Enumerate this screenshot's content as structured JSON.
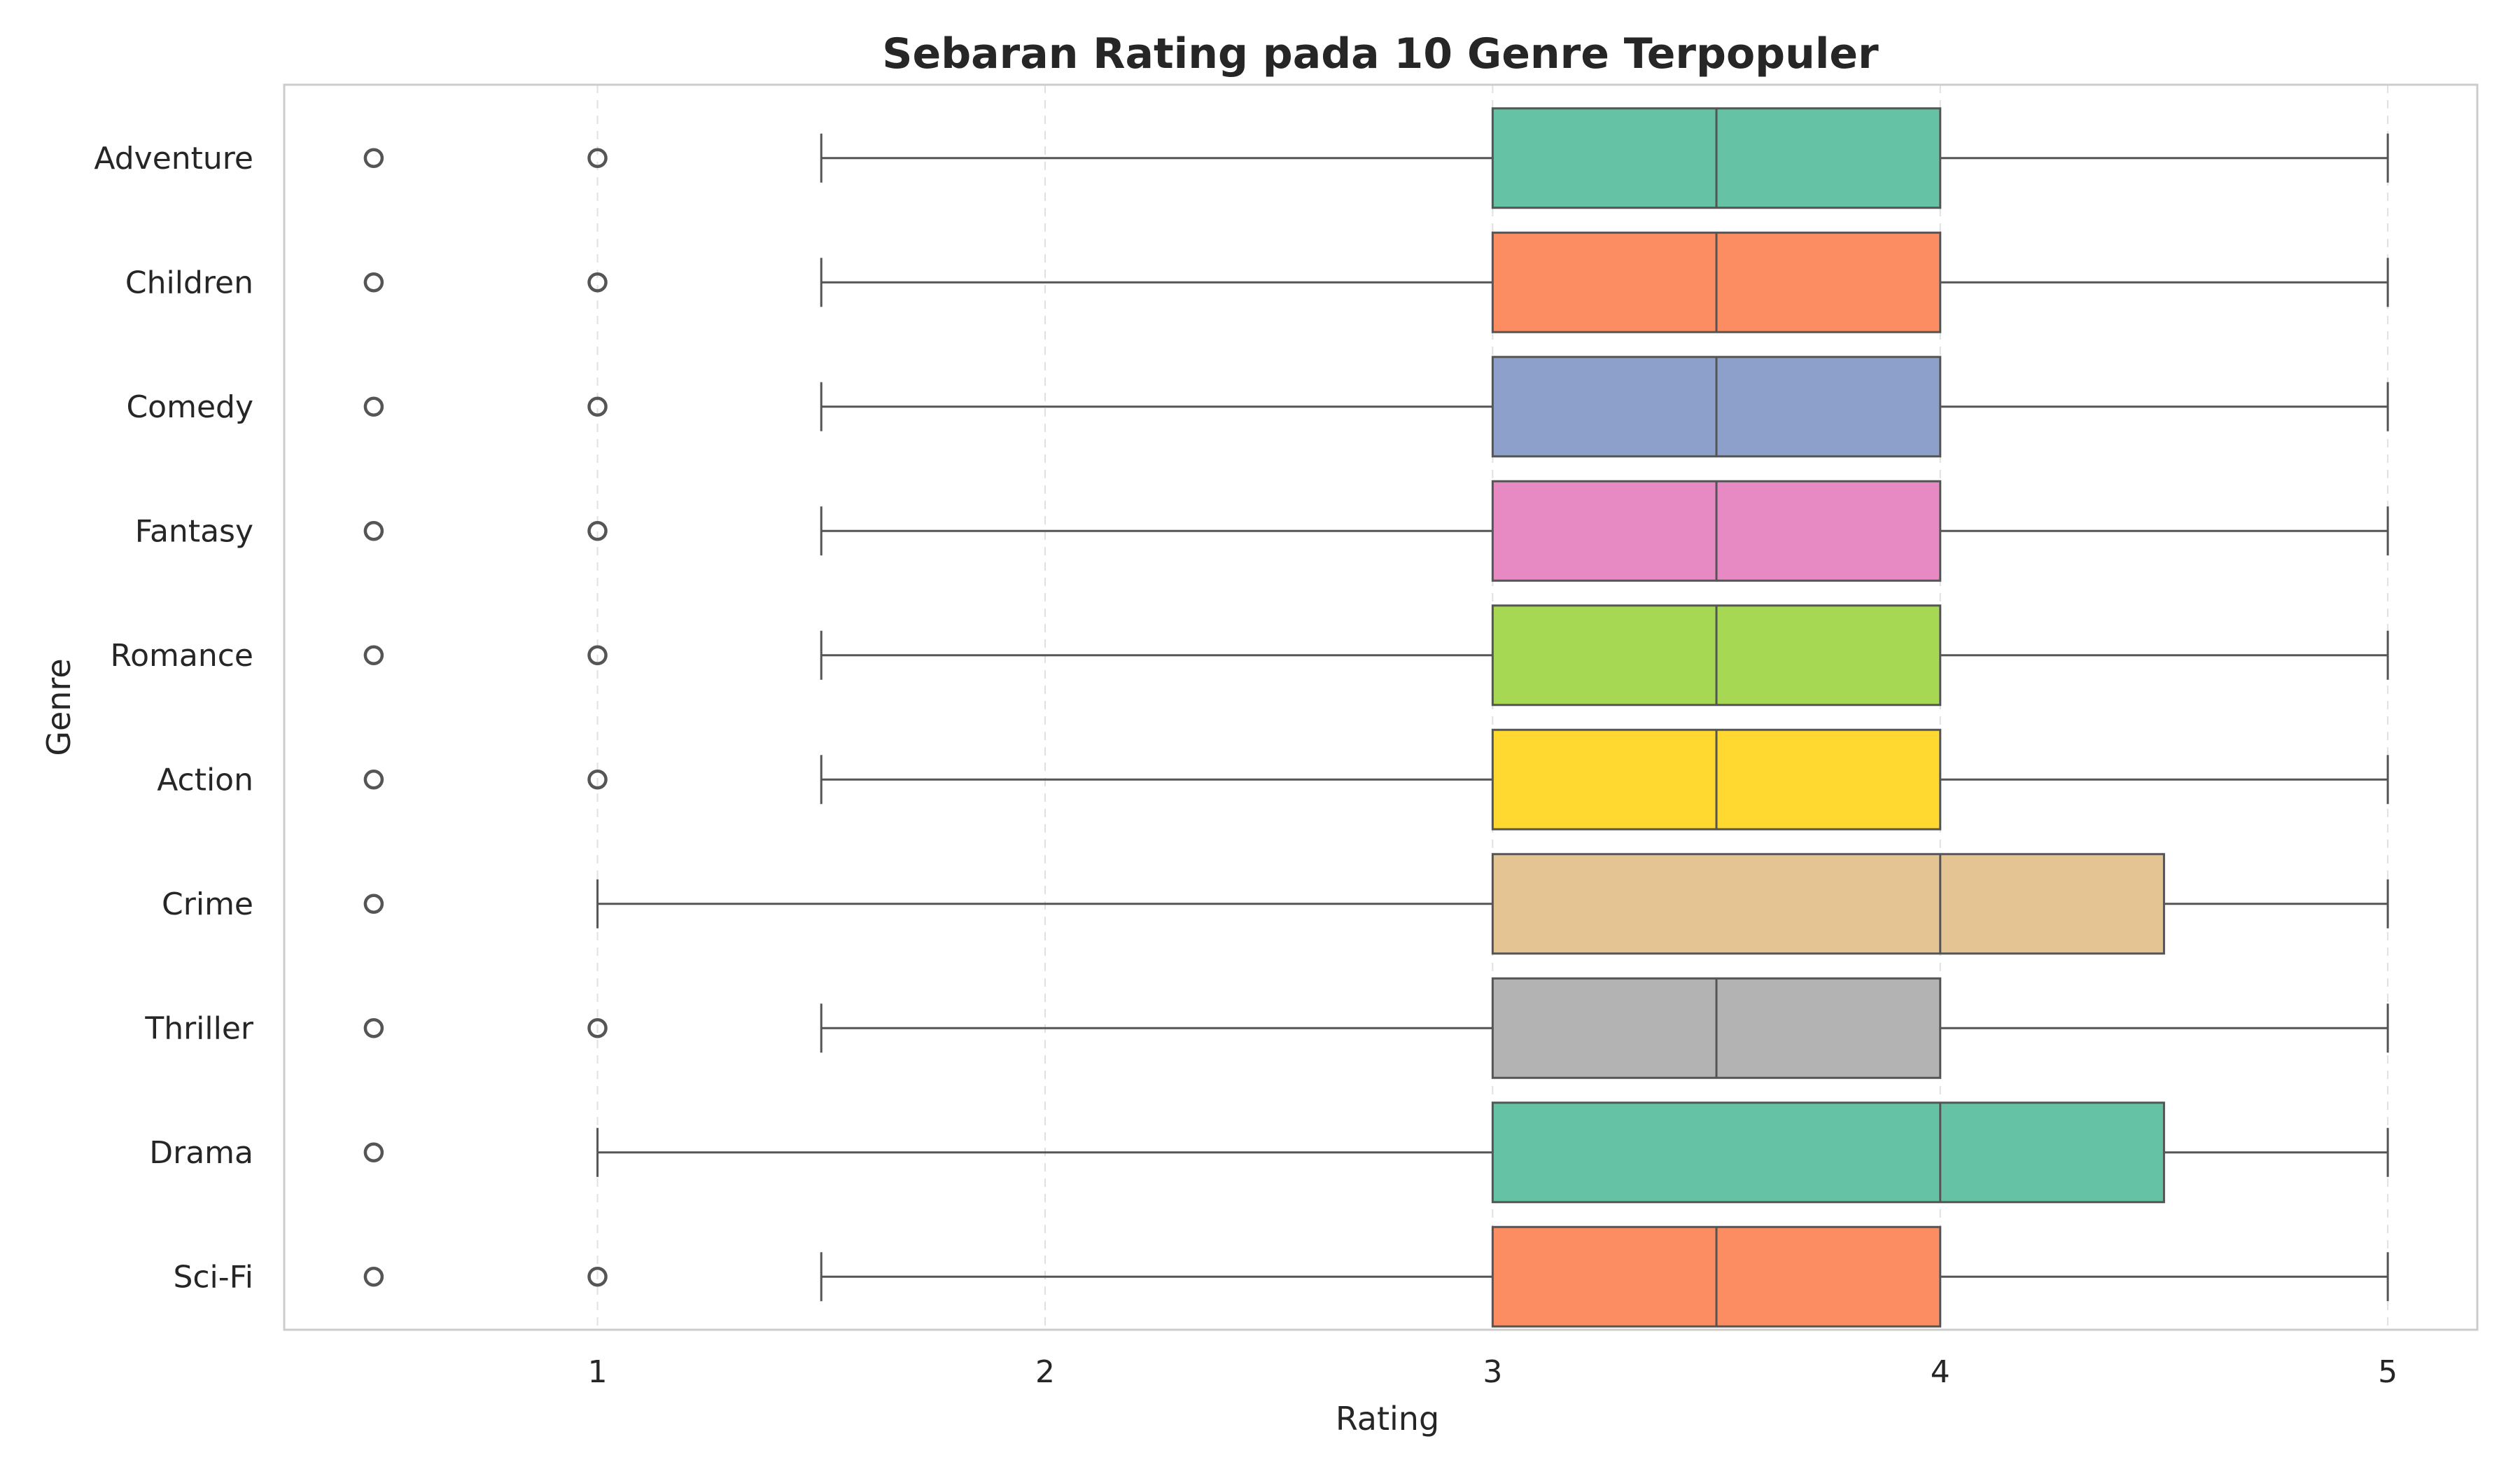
{
  "chart_data": {
    "type": "box",
    "orientation": "horizontal",
    "title": "Sebaran Rating pada 10 Genre Terpopuler",
    "xlabel": "Rating",
    "ylabel": "Genre",
    "xlim": [
      0.3,
      5.2
    ],
    "xticks": [
      1,
      2,
      3,
      4,
      5
    ],
    "grid": "vertical dashed",
    "categories": [
      "Adventure",
      "Children",
      "Comedy",
      "Fantasy",
      "Romance",
      "Action",
      "Crime",
      "Thriller",
      "Drama",
      "Sci-Fi"
    ],
    "boxes": [
      {
        "genre": "Adventure",
        "whisker_low": 1.5,
        "q1": 3.0,
        "median": 3.5,
        "q3": 4.0,
        "whisker_high": 5.0,
        "outliers": [
          0.5,
          1.0
        ],
        "color": "#66c2a5"
      },
      {
        "genre": "Children",
        "whisker_low": 1.5,
        "q1": 3.0,
        "median": 3.5,
        "q3": 4.0,
        "whisker_high": 5.0,
        "outliers": [
          0.5,
          1.0
        ],
        "color": "#fc8d62"
      },
      {
        "genre": "Comedy",
        "whisker_low": 1.5,
        "q1": 3.0,
        "median": 3.5,
        "q3": 4.0,
        "whisker_high": 5.0,
        "outliers": [
          0.5,
          1.0
        ],
        "color": "#8da0cb"
      },
      {
        "genre": "Fantasy",
        "whisker_low": 1.5,
        "q1": 3.0,
        "median": 3.5,
        "q3": 4.0,
        "whisker_high": 5.0,
        "outliers": [
          0.5,
          1.0
        ],
        "color": "#e78ac3"
      },
      {
        "genre": "Romance",
        "whisker_low": 1.5,
        "q1": 3.0,
        "median": 3.5,
        "q3": 4.0,
        "whisker_high": 5.0,
        "outliers": [
          0.5,
          1.0
        ],
        "color": "#a6d854"
      },
      {
        "genre": "Action",
        "whisker_low": 1.5,
        "q1": 3.0,
        "median": 3.5,
        "q3": 4.0,
        "whisker_high": 5.0,
        "outliers": [
          0.5,
          1.0
        ],
        "color": "#ffd92f"
      },
      {
        "genre": "Crime",
        "whisker_low": 1.0,
        "q1": 3.0,
        "median": 4.0,
        "q3": 4.5,
        "whisker_high": 5.0,
        "outliers": [
          0.5
        ],
        "color": "#e5c494"
      },
      {
        "genre": "Thriller",
        "whisker_low": 1.5,
        "q1": 3.0,
        "median": 3.5,
        "q3": 4.0,
        "whisker_high": 5.0,
        "outliers": [
          0.5,
          1.0
        ],
        "color": "#b3b3b3"
      },
      {
        "genre": "Drama",
        "whisker_low": 1.0,
        "q1": 3.0,
        "median": 4.0,
        "q3": 4.5,
        "whisker_high": 5.0,
        "outliers": [
          0.5
        ],
        "color": "#66c2a5"
      },
      {
        "genre": "Sci-Fi",
        "whisker_low": 1.5,
        "q1": 3.0,
        "median": 3.5,
        "q3": 4.0,
        "whisker_high": 5.0,
        "outliers": [
          0.5,
          1.0
        ],
        "color": "#fc8d62"
      }
    ]
  }
}
